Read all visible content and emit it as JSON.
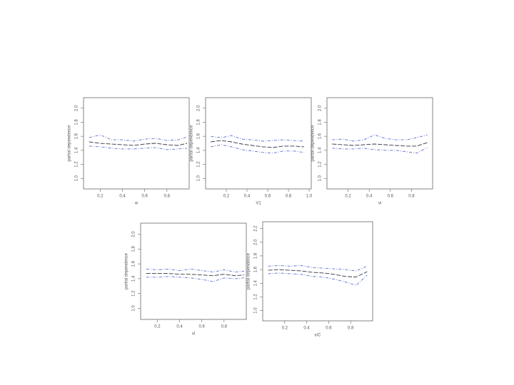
{
  "chart_data": [
    {
      "type": "line",
      "x_label": "w",
      "y_label": "partial dependence",
      "xlim": [
        0.05,
        1.0
      ],
      "ylim": [
        0.85,
        2.15
      ],
      "xticks": [
        0.2,
        0.4,
        0.6,
        0.8
      ],
      "yticks": [
        {
          "value": 1.0,
          "label": "1.0"
        },
        1.2,
        1.4,
        1.6,
        1.8,
        {
          "value": 2.0,
          "label": "2.0"
        }
      ],
      "x": [
        0.1,
        0.2,
        0.3,
        0.4,
        0.5,
        0.6,
        0.7,
        0.8,
        0.9,
        0.98
      ],
      "series": [
        {
          "color": "#5a6fd0",
          "values": [
            1.58,
            1.62,
            1.55,
            1.55,
            1.53,
            1.56,
            1.57,
            1.54,
            1.55,
            1.59
          ]
        },
        {
          "color": "#333344",
          "values": [
            1.52,
            1.5,
            1.49,
            1.48,
            1.47,
            1.49,
            1.5,
            1.48,
            1.47,
            1.5
          ]
        },
        {
          "color": "#5a6fd0",
          "values": [
            1.46,
            1.45,
            1.43,
            1.42,
            1.42,
            1.43,
            1.44,
            1.41,
            1.42,
            1.43
          ]
        }
      ]
    },
    {
      "type": "line",
      "x_label": "V1",
      "y_label": "partial dependence",
      "xlim": [
        0.0,
        1.02
      ],
      "ylim": [
        0.85,
        2.15
      ],
      "xticks": [
        0.2,
        0.4,
        0.6,
        0.8,
        {
          "value": 1.0,
          "label": "1.0"
        }
      ],
      "yticks": [
        {
          "value": 1.0,
          "label": "1.0"
        },
        1.2,
        1.4,
        1.6,
        1.8,
        {
          "value": 2.0,
          "label": "2.0"
        }
      ],
      "x": [
        0.05,
        0.15,
        0.25,
        0.35,
        0.45,
        0.55,
        0.65,
        0.75,
        0.85,
        0.95
      ],
      "series": [
        {
          "color": "#5a6fd0",
          "values": [
            1.6,
            1.58,
            1.61,
            1.56,
            1.55,
            1.53,
            1.54,
            1.55,
            1.54,
            1.53
          ]
        },
        {
          "color": "#333344",
          "values": [
            1.52,
            1.54,
            1.52,
            1.49,
            1.47,
            1.45,
            1.44,
            1.46,
            1.46,
            1.45
          ]
        },
        {
          "color": "#5a6fd0",
          "values": [
            1.45,
            1.48,
            1.45,
            1.41,
            1.39,
            1.37,
            1.36,
            1.39,
            1.39,
            1.37
          ]
        }
      ]
    },
    {
      "type": "line",
      "x_label": "vi",
      "y_label": "partial dependence",
      "xlim": [
        0.0,
        1.0
      ],
      "ylim": [
        0.85,
        2.15
      ],
      "xticks": [
        0.2,
        0.4,
        0.6,
        0.8
      ],
      "yticks": [
        {
          "value": 1.0,
          "label": "1.0"
        },
        1.2,
        1.4,
        1.6,
        1.8,
        {
          "value": 2.0,
          "label": "2.0"
        }
      ],
      "x": [
        0.05,
        0.15,
        0.25,
        0.35,
        0.45,
        0.55,
        0.65,
        0.75,
        0.85,
        0.95
      ],
      "series": [
        {
          "color": "#5a6fd0",
          "values": [
            1.55,
            1.56,
            1.53,
            1.55,
            1.62,
            1.57,
            1.55,
            1.55,
            1.58,
            1.62
          ]
        },
        {
          "color": "#333344",
          "values": [
            1.49,
            1.48,
            1.47,
            1.48,
            1.49,
            1.48,
            1.47,
            1.46,
            1.46,
            1.51
          ]
        },
        {
          "color": "#5a6fd0",
          "values": [
            1.43,
            1.42,
            1.42,
            1.43,
            1.41,
            1.4,
            1.4,
            1.38,
            1.36,
            1.44
          ]
        }
      ]
    },
    {
      "type": "line",
      "x_label": "xl",
      "y_label": "partial dependence",
      "xlim": [
        0.05,
        1.0
      ],
      "ylim": [
        0.85,
        2.15
      ],
      "xticks": [
        0.2,
        0.4,
        0.6,
        0.8
      ],
      "yticks": [
        {
          "value": 1.0,
          "label": "1.0"
        },
        1.2,
        1.4,
        1.6,
        1.8,
        {
          "value": 2.0,
          "label": "2.0"
        }
      ],
      "x": [
        0.1,
        0.2,
        0.3,
        0.4,
        0.5,
        0.6,
        0.7,
        0.8,
        0.9,
        0.98
      ],
      "series": [
        {
          "color": "#5a6fd0",
          "values": [
            1.53,
            1.52,
            1.53,
            1.51,
            1.53,
            1.51,
            1.49,
            1.52,
            1.49,
            1.5
          ]
        },
        {
          "color": "#333344",
          "values": [
            1.47,
            1.47,
            1.47,
            1.46,
            1.46,
            1.45,
            1.44,
            1.46,
            1.44,
            1.45
          ]
        },
        {
          "color": "#5a6fd0",
          "values": [
            1.42,
            1.42,
            1.43,
            1.42,
            1.41,
            1.39,
            1.36,
            1.41,
            1.4,
            1.41
          ]
        }
      ]
    },
    {
      "type": "line",
      "x_label": "x/C",
      "y_label": "partial dependence",
      "xlim": [
        0.0,
        1.0
      ],
      "ylim": [
        0.85,
        2.3
      ],
      "xticks": [
        0.2,
        0.4,
        0.6,
        0.8
      ],
      "yticks": [
        {
          "value": 1.0,
          "label": "1.0"
        },
        1.2,
        1.4,
        1.6,
        1.8,
        {
          "value": 2.0,
          "label": "2.0"
        },
        2.2
      ],
      "x": [
        0.05,
        0.15,
        0.25,
        0.35,
        0.45,
        0.55,
        0.65,
        0.75,
        0.85,
        0.95
      ],
      "series": [
        {
          "color": "#5a6fd0",
          "values": [
            1.65,
            1.66,
            1.65,
            1.66,
            1.63,
            1.62,
            1.61,
            1.6,
            1.58,
            1.65
          ]
        },
        {
          "color": "#333344",
          "values": [
            1.59,
            1.6,
            1.59,
            1.58,
            1.56,
            1.55,
            1.53,
            1.5,
            1.49,
            1.57
          ]
        },
        {
          "color": "#5a6fd0",
          "values": [
            1.54,
            1.55,
            1.54,
            1.53,
            1.5,
            1.49,
            1.46,
            1.42,
            1.37,
            1.52
          ]
        }
      ]
    }
  ]
}
